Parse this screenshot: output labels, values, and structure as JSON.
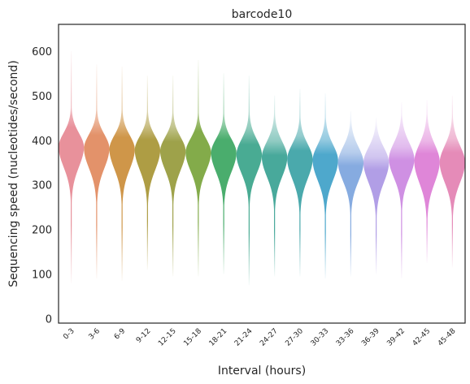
{
  "chart_data": {
    "type": "violin",
    "title": "barcode10",
    "xlabel": "Interval (hours)",
    "ylabel": "Sequencing speed (nucleotides/second)",
    "ylim": [
      -10,
      660
    ],
    "yticks": [
      "0",
      "100",
      "200",
      "300",
      "400",
      "500",
      "600"
    ],
    "grid": false,
    "categories": [
      "0-3",
      "3-6",
      "6-9",
      "9-12",
      "12-15",
      "15-18",
      "18-21",
      "21-24",
      "24-27",
      "27-30",
      "30-33",
      "33-36",
      "36-39",
      "39-42",
      "42-45",
      "45-48"
    ],
    "colors": [
      "#e8919b",
      "#e3926a",
      "#cf9649",
      "#ae9d44",
      "#9ea24a",
      "#83ab4a",
      "#4aad6d",
      "#49ab93",
      "#48a99b",
      "#4aa9ac",
      "#4ea8cc",
      "#86abe0",
      "#b19ee6",
      "#cf90e3",
      "#df86d8",
      "#e58bb8"
    ],
    "series": [
      {
        "name": "0-3",
        "median": 385,
        "q1": 355,
        "q3": 405,
        "min": 80,
        "max": 600
      },
      {
        "name": "3-6",
        "median": 382,
        "q1": 352,
        "q3": 402,
        "min": 90,
        "max": 570
      },
      {
        "name": "6-9",
        "median": 380,
        "q1": 350,
        "q3": 400,
        "min": 85,
        "max": 565
      },
      {
        "name": "9-12",
        "median": 378,
        "q1": 348,
        "q3": 398,
        "min": 110,
        "max": 545
      },
      {
        "name": "12-15",
        "median": 376,
        "q1": 347,
        "q3": 396,
        "min": 95,
        "max": 545
      },
      {
        "name": "15-18",
        "median": 373,
        "q1": 345,
        "q3": 393,
        "min": 95,
        "max": 580
      },
      {
        "name": "18-21",
        "median": 372,
        "q1": 343,
        "q3": 392,
        "min": 100,
        "max": 550
      },
      {
        "name": "21-24",
        "median": 368,
        "q1": 340,
        "q3": 390,
        "min": 75,
        "max": 545
      },
      {
        "name": "24-27",
        "median": 362,
        "q1": 333,
        "q3": 385,
        "min": 95,
        "max": 500
      },
      {
        "name": "27-30",
        "median": 358,
        "q1": 328,
        "q3": 380,
        "min": 95,
        "max": 515
      },
      {
        "name": "30-33",
        "median": 355,
        "q1": 325,
        "q3": 378,
        "min": 90,
        "max": 505
      },
      {
        "name": "33-36",
        "median": 350,
        "q1": 322,
        "q3": 373,
        "min": 95,
        "max": 465
      },
      {
        "name": "36-39",
        "median": 350,
        "q1": 320,
        "q3": 372,
        "min": 100,
        "max": 450
      },
      {
        "name": "39-42",
        "median": 358,
        "q1": 330,
        "q3": 382,
        "min": 90,
        "max": 485
      },
      {
        "name": "42-45",
        "median": 352,
        "q1": 320,
        "q3": 378,
        "min": 125,
        "max": 490
      },
      {
        "name": "45-48",
        "median": 350,
        "q1": 320,
        "q3": 375,
        "min": 115,
        "max": 500
      }
    ]
  }
}
